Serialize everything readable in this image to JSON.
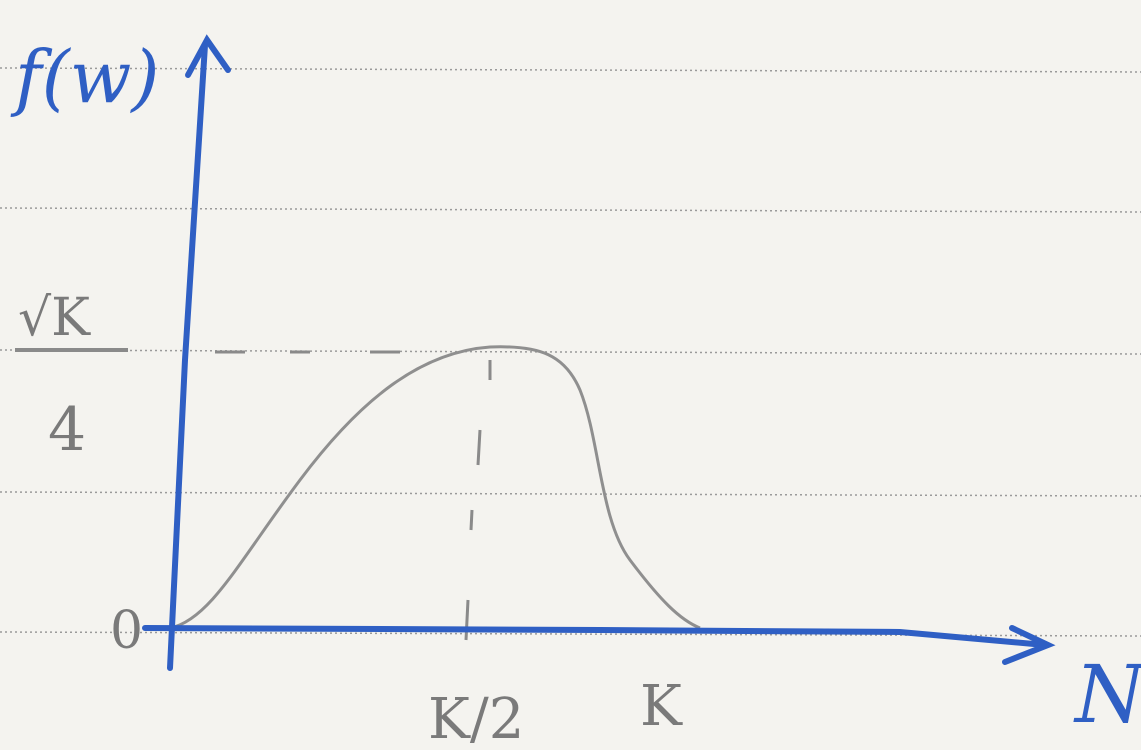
{
  "axes": {
    "y_label": "f(w)",
    "x_label": "N"
  },
  "y_labels": {
    "peak": {
      "numerator": "√K",
      "denominator": "4"
    },
    "origin": "0"
  },
  "x_labels": {
    "half": "K/2",
    "end": "K"
  }
}
